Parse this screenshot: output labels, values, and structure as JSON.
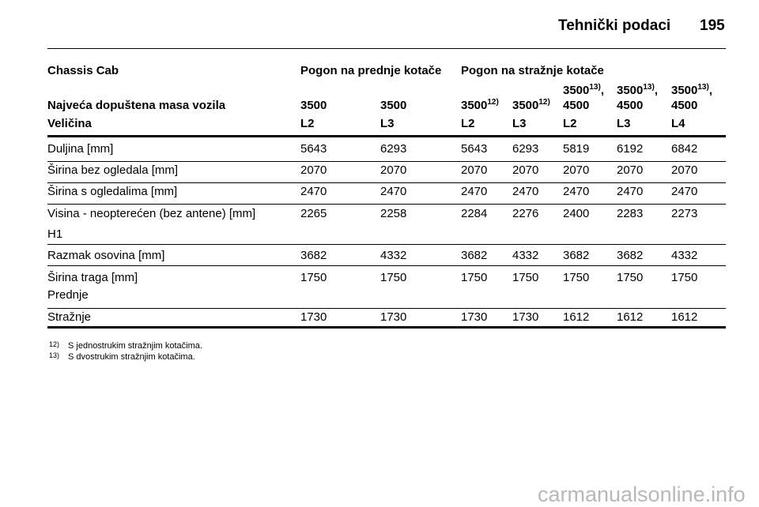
{
  "header": {
    "title": "Tehnički podaci",
    "page": "195"
  },
  "table": {
    "group_headers": [
      "Chassis Cab",
      "Pogon na prednje kotače",
      "Pogon na stražnje kotače"
    ],
    "mass_row": {
      "label": "Najveća dopuštena masa vozila",
      "cells": [
        {
          "text": "3500"
        },
        {
          "text": "3500"
        },
        {
          "text": "3500",
          "sup": "12)"
        },
        {
          "text": "3500",
          "sup": "12)"
        },
        {
          "text": "3500",
          "sup": "13)",
          "after": ",",
          "line2": "4500"
        },
        {
          "text": "3500",
          "sup": "13)",
          "after": ",",
          "line2": "4500"
        },
        {
          "text": "3500",
          "sup": "13)",
          "after": ",",
          "line2": "4500"
        }
      ]
    },
    "size_row": {
      "label": "Veličina",
      "cells": [
        "L2",
        "L3",
        "L2",
        "L3",
        "L2",
        "L3",
        "L4"
      ]
    },
    "rows": [
      {
        "label": "Duljina [mm]",
        "values": [
          5643,
          6293,
          5643,
          6293,
          5819,
          6192,
          6842
        ]
      },
      {
        "label": "Širina bez ogledala [mm]",
        "values": [
          2070,
          2070,
          2070,
          2070,
          2070,
          2070,
          2070
        ]
      },
      {
        "label": "Širina s ogledalima [mm]",
        "values": [
          2470,
          2470,
          2470,
          2470,
          2470,
          2470,
          2470
        ]
      },
      {
        "label": "Visina - neopterećen (bez antene) [mm]",
        "sublabel": "H1",
        "values": [
          2265,
          2258,
          2284,
          2276,
          2400,
          2283,
          2273
        ]
      },
      {
        "label": "Razmak osovina [mm]",
        "values": [
          3682,
          4332,
          3682,
          4332,
          3682,
          3682,
          4332
        ]
      },
      {
        "label": "Širina traga [mm]",
        "sublabel": "Prednje",
        "values": [
          1750,
          1750,
          1750,
          1750,
          1750,
          1750,
          1750
        ]
      },
      {
        "label": "Stražnje",
        "values": [
          1730,
          1730,
          1730,
          1730,
          1612,
          1612,
          1612
        ]
      }
    ]
  },
  "footnotes": [
    {
      "mark": "12)",
      "text": "S jednostrukim stražnjim kotačima."
    },
    {
      "mark": "13)",
      "text": "S dvostrukim stražnjim kotačima."
    }
  ],
  "watermark": "carmanualsonline.info"
}
